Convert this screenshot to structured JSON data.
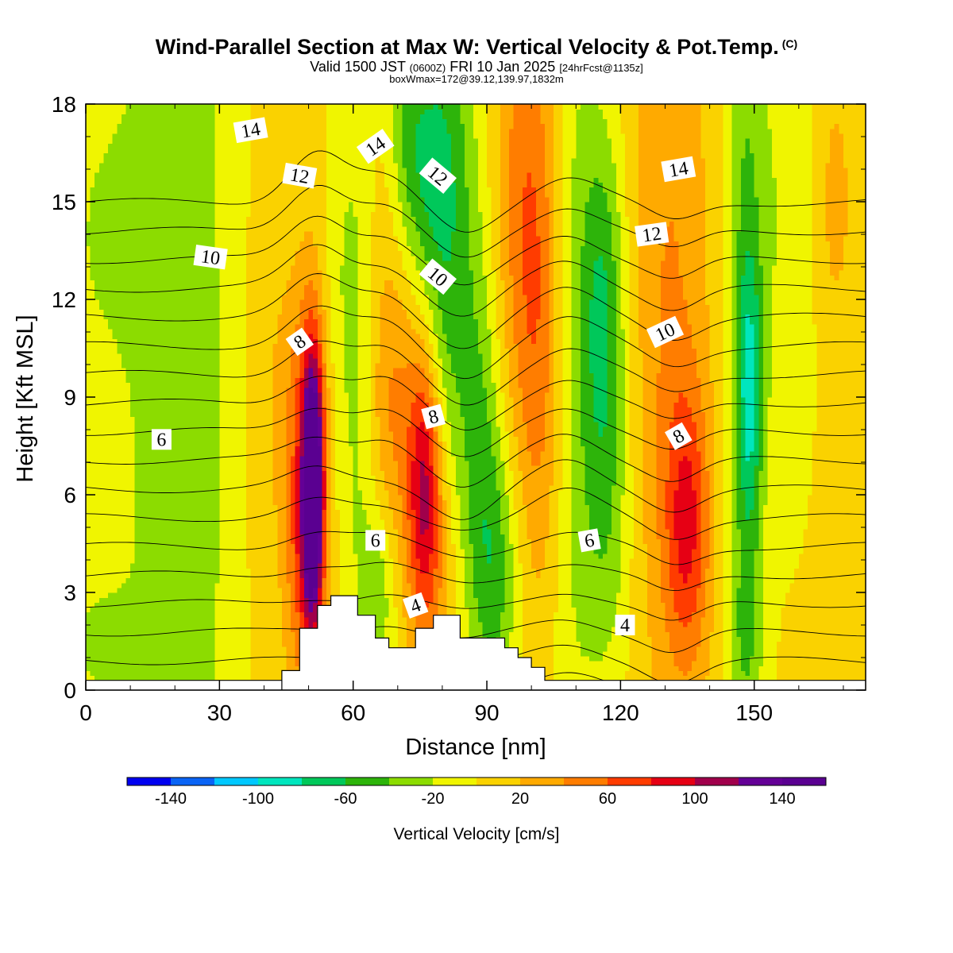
{
  "header": {
    "title": "Wind-Parallel Section at Max W: Vertical Velocity & Pot.Temp.",
    "copyright": "(C)",
    "valid_prefix": "Valid 1500 JST",
    "valid_utc": "(0600Z)",
    "valid_date": "FRI 10 Jan 2025",
    "forecast": "[24hrFcst@1135z]",
    "boxinfo": "boxWmax=172@39.12,139.97,1832m"
  },
  "colors": {
    "plot_background": "#f3f700",
    "terrain": "#ffffff",
    "contour_line": "#000000"
  },
  "chart_data": {
    "type": "heatmap",
    "xlabel": "Distance [nm]",
    "ylabel": "Height [Kft MSL]",
    "xlim": [
      0,
      175
    ],
    "ylim": [
      0,
      18
    ],
    "xticks": [
      0,
      30,
      60,
      90,
      120,
      150
    ],
    "yticks": [
      0,
      3,
      6,
      9,
      12,
      15,
      18
    ],
    "colorbar": {
      "label": "Vertical Velocity [cm/s]",
      "boundaries": [
        -160,
        -140,
        -120,
        -100,
        -80,
        -60,
        -40,
        -20,
        0,
        20,
        40,
        60,
        80,
        100,
        120,
        140,
        160
      ],
      "tick_labels": [
        "-140",
        "-100",
        "-60",
        "-20",
        "20",
        "60",
        "100",
        "140"
      ],
      "tick_values": [
        -140,
        -100,
        -60,
        -20,
        20,
        60,
        100,
        140
      ],
      "colors": [
        "#0000f0",
        "#0a64f5",
        "#00c8ff",
        "#00e6be",
        "#00c85a",
        "#2db40a",
        "#8cdc00",
        "#f0f500",
        "#fad200",
        "#ffaa00",
        "#ff7d00",
        "#ff3c00",
        "#e60014",
        "#a0004b",
        "#640096",
        "#5a0091"
      ]
    },
    "terrain": [
      [
        44,
        0
      ],
      [
        44,
        0.6
      ],
      [
        48,
        0.6
      ],
      [
        48,
        1.9
      ],
      [
        52,
        1.9
      ],
      [
        52,
        2.6
      ],
      [
        55,
        2.6
      ],
      [
        55,
        2.9
      ],
      [
        61,
        2.9
      ],
      [
        61,
        2.3
      ],
      [
        65,
        2.3
      ],
      [
        65,
        1.6
      ],
      [
        68,
        1.6
      ],
      [
        68,
        1.3
      ],
      [
        74,
        1.3
      ],
      [
        74,
        1.9
      ],
      [
        78,
        1.9
      ],
      [
        78,
        2.3
      ],
      [
        84,
        2.3
      ],
      [
        84,
        1.6
      ],
      [
        94,
        1.6
      ],
      [
        94,
        1.3
      ],
      [
        97,
        1.3
      ],
      [
        97,
        1.0
      ],
      [
        100,
        1.0
      ],
      [
        100,
        0.7
      ],
      [
        103,
        0.7
      ],
      [
        103,
        0.3
      ],
      [
        175,
        0.3
      ],
      [
        175,
        0
      ],
      [
        0,
        0
      ],
      [
        0,
        0.3
      ],
      [
        44,
        0.3
      ]
    ],
    "w_field": [
      {
        "x": 17,
        "z": 9,
        "sx": 9,
        "sz": 30,
        "w": -30
      },
      {
        "x": 26,
        "z": 8,
        "sx": 6,
        "sz": 20,
        "w": -18
      },
      {
        "x": 3,
        "z": 14,
        "sx": 7,
        "sz": 3,
        "w": -22
      },
      {
        "x": 2,
        "z": 1.5,
        "sx": 6,
        "sz": 1.5,
        "w": -25
      },
      {
        "x": 51,
        "z": 6.2,
        "sx": 1.6,
        "sz": 2.8,
        "w": 155
      },
      {
        "x": 50.5,
        "z": 6,
        "sx": 2.6,
        "sz": 4.5,
        "w": 45
      },
      {
        "x": 48,
        "z": 4,
        "sx": 3,
        "sz": 3,
        "w": 35
      },
      {
        "x": 47,
        "z": 9,
        "sx": 5,
        "sz": 3,
        "w": 25
      },
      {
        "x": 59,
        "z": 12,
        "sx": 4,
        "sz": 5,
        "w": -30
      },
      {
        "x": 62,
        "z": 7,
        "sx": 3,
        "sz": 5,
        "w": -25
      },
      {
        "x": 66,
        "z": 3,
        "sx": 3,
        "sz": 2,
        "w": -40
      },
      {
        "x": 69,
        "z": 9,
        "sx": 6,
        "sz": 4,
        "w": 40
      },
      {
        "x": 76,
        "z": 6.5,
        "sx": 2.5,
        "sz": 2.8,
        "w": 75
      },
      {
        "x": 78,
        "z": 4,
        "sx": 4,
        "sz": 3,
        "w": 40
      },
      {
        "x": 82,
        "z": 13,
        "sx": 5,
        "sz": 7,
        "w": -55
      },
      {
        "x": 77,
        "z": 16,
        "sx": 4,
        "sz": 3,
        "w": -40
      },
      {
        "x": 89,
        "z": 8,
        "sx": 3,
        "sz": 4,
        "w": -30
      },
      {
        "x": 92,
        "z": 3.5,
        "sx": 4,
        "sz": 3,
        "w": -50
      },
      {
        "x": 72,
        "z": 17,
        "sx": 3,
        "sz": 3,
        "w": -35
      },
      {
        "x": 99,
        "z": 15.5,
        "sx": 5,
        "sz": 5,
        "w": 45
      },
      {
        "x": 102,
        "z": 9,
        "sx": 4,
        "sz": 5,
        "w": 35
      },
      {
        "x": 109,
        "z": 11,
        "sx": 4,
        "sz": 12,
        "w": -30
      },
      {
        "x": 116,
        "z": 12,
        "sx": 3.5,
        "sz": 4,
        "w": -60
      },
      {
        "x": 117,
        "z": 5,
        "sx": 4,
        "sz": 4,
        "w": -35
      },
      {
        "x": 131,
        "z": 12,
        "sx": 6,
        "sz": 9,
        "w": 35
      },
      {
        "x": 135,
        "z": 5,
        "sx": 3.5,
        "sz": 3,
        "w": 65
      },
      {
        "x": 148,
        "z": 12,
        "sx": 3,
        "sz": 10,
        "w": -45
      },
      {
        "x": 149,
        "z": 9,
        "sx": 2,
        "sz": 3,
        "w": -55
      },
      {
        "x": 148,
        "z": 1.5,
        "sx": 3,
        "sz": 2,
        "w": -25
      },
      {
        "x": 157,
        "z": 15,
        "sx": 5,
        "sz": 7,
        "w": -25
      },
      {
        "x": 168,
        "z": 15,
        "sx": 3,
        "sz": 3,
        "w": 22
      }
    ],
    "theta_labels": [
      {
        "text": "14",
        "x": 37,
        "z": 17.2,
        "angle": -10
      },
      {
        "text": "14",
        "x": 65,
        "z": 16.7,
        "angle": -35
      },
      {
        "text": "14",
        "x": 133,
        "z": 16.0,
        "angle": -10
      },
      {
        "text": "12",
        "x": 48,
        "z": 15.8,
        "angle": 10
      },
      {
        "text": "12",
        "x": 79,
        "z": 15.8,
        "angle": 40
      },
      {
        "text": "12",
        "x": 127,
        "z": 14.0,
        "angle": -8
      },
      {
        "text": "10",
        "x": 28,
        "z": 13.3,
        "angle": 8
      },
      {
        "text": "10",
        "x": 79,
        "z": 12.7,
        "angle": 40
      },
      {
        "text": "10",
        "x": 130,
        "z": 11.0,
        "angle": -25
      },
      {
        "text": "8",
        "x": 48,
        "z": 10.7,
        "angle": -35
      },
      {
        "text": "8",
        "x": 78,
        "z": 8.4,
        "angle": -15
      },
      {
        "text": "8",
        "x": 133,
        "z": 7.8,
        "angle": -30
      },
      {
        "text": "6",
        "x": 17,
        "z": 7.7,
        "angle": 0
      },
      {
        "text": "6",
        "x": 65,
        "z": 4.6,
        "angle": 0
      },
      {
        "text": "6",
        "x": 113,
        "z": 4.6,
        "angle": -10
      },
      {
        "text": "4",
        "x": 74,
        "z": 2.6,
        "angle": -20
      },
      {
        "text": "4",
        "x": 121,
        "z": 2.0,
        "angle": 0
      }
    ]
  }
}
